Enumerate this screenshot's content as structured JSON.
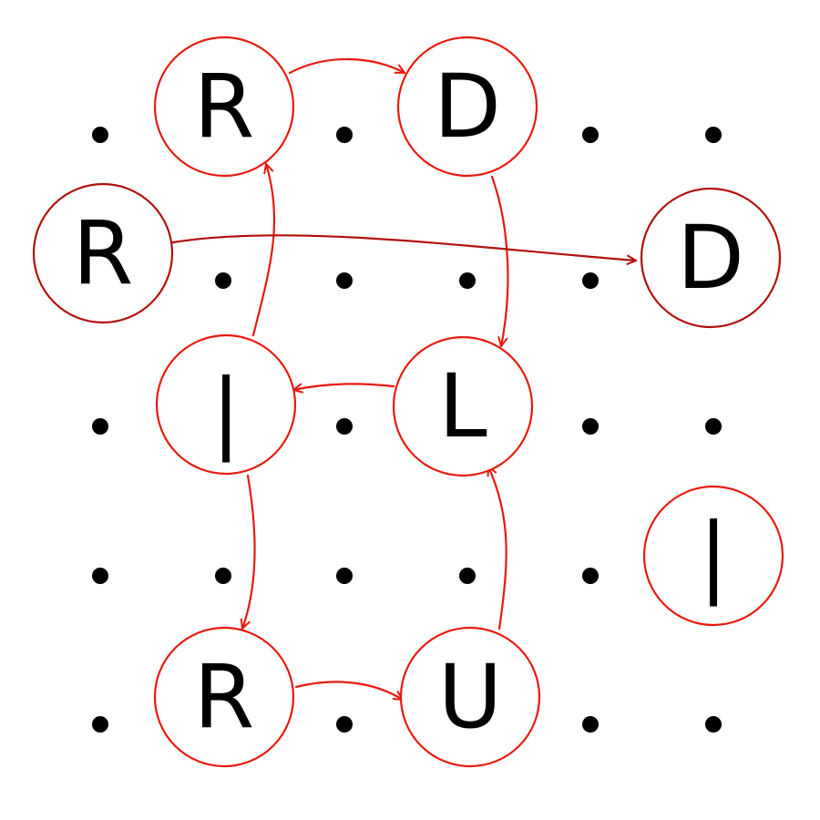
{
  "colors": {
    "accent": "#e8190f",
    "accent_dark": "#b0100c",
    "dot": "#000000",
    "text": "#000000",
    "background": "#ffffff"
  },
  "grid": {
    "rows": 5,
    "cols": 6,
    "dot_symbol": "."
  },
  "nodes": [
    {
      "id": "n1",
      "letter": "R",
      "color": "accent"
    },
    {
      "id": "n2",
      "letter": "D",
      "color": "accent"
    },
    {
      "id": "n3",
      "letter": "R",
      "color": "accent_dark"
    },
    {
      "id": "n4",
      "letter": "D",
      "color": "accent_dark"
    },
    {
      "id": "n5",
      "letter": "|",
      "color": "accent"
    },
    {
      "id": "n6",
      "letter": "L",
      "color": "accent"
    },
    {
      "id": "n7",
      "letter": "|",
      "color": "accent"
    },
    {
      "id": "n8",
      "letter": "R",
      "color": "accent"
    },
    {
      "id": "n9",
      "letter": "U",
      "color": "accent"
    }
  ],
  "edges": [
    {
      "from": "n1",
      "to": "n2",
      "color": "accent"
    },
    {
      "from": "n2",
      "to": "n6",
      "color": "accent"
    },
    {
      "from": "n6",
      "to": "n5",
      "color": "accent"
    },
    {
      "from": "n5",
      "to": "n1",
      "color": "accent"
    },
    {
      "from": "n5",
      "to": "n8",
      "color": "accent"
    },
    {
      "from": "n8",
      "to": "n9",
      "color": "accent"
    },
    {
      "from": "n9",
      "to": "n6",
      "color": "accent"
    },
    {
      "from": "n3",
      "to": "n4",
      "color": "accent_dark"
    }
  ]
}
